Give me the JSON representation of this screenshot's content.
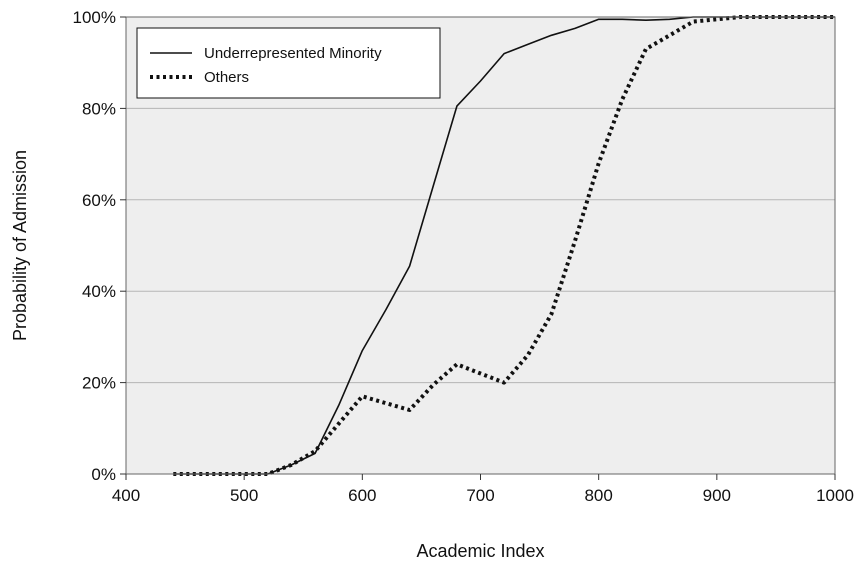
{
  "chart_data": {
    "type": "line",
    "title": "",
    "xlabel": "Academic Index",
    "ylabel": "Probability of Admission",
    "xlim": [
      400,
      1000
    ],
    "ylim": [
      0,
      100
    ],
    "x_ticks": [
      400,
      500,
      600,
      700,
      800,
      900,
      1000
    ],
    "x_tick_labels": [
      "400",
      "500",
      "600",
      "700",
      "800",
      "900",
      "1000"
    ],
    "y_ticks": [
      0,
      20,
      40,
      60,
      80,
      100
    ],
    "y_tick_labels": [
      "0%",
      "20%",
      "40%",
      "60%",
      "80%",
      "100%"
    ],
    "grid": "horizontal",
    "plot_background": "#eeeeee",
    "legend_position": "top-left",
    "series": [
      {
        "name": "Underrepresented Minority",
        "style": "solid",
        "color": "#111111",
        "x": [
          440,
          460,
          480,
          500,
          520,
          540,
          560,
          580,
          600,
          620,
          640,
          660,
          680,
          700,
          720,
          740,
          760,
          780,
          800,
          820,
          840,
          860,
          880,
          900,
          920,
          940,
          960,
          980,
          1000
        ],
        "y": [
          0,
          0,
          0,
          0,
          0,
          2,
          4.5,
          15,
          27,
          36,
          45.5,
          63,
          80.5,
          86,
          92,
          94,
          96,
          97.5,
          99.5,
          99.5,
          99.3,
          99.5,
          100,
          100,
          100,
          100,
          100,
          100,
          100
        ]
      },
      {
        "name": "Others",
        "style": "dotted",
        "color": "#111111",
        "x": [
          440,
          460,
          480,
          500,
          520,
          540,
          560,
          580,
          600,
          620,
          640,
          660,
          680,
          700,
          720,
          740,
          760,
          780,
          800,
          820,
          840,
          860,
          880,
          900,
          920,
          940,
          960,
          980,
          1000
        ],
        "y": [
          0,
          0,
          0,
          0,
          0,
          2,
          5,
          11,
          17,
          15.5,
          14,
          19.5,
          24,
          22,
          20,
          26,
          35,
          51,
          68,
          82,
          93,
          96,
          99,
          99.5,
          100,
          100,
          100,
          100,
          100
        ]
      }
    ]
  }
}
